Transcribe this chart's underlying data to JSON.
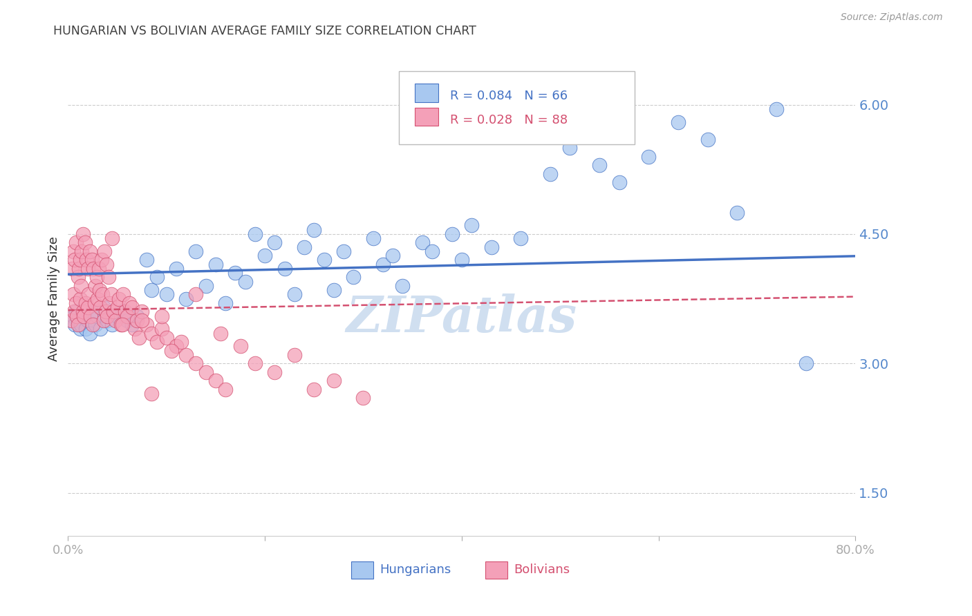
{
  "title": "HUNGARIAN VS BOLIVIAN AVERAGE FAMILY SIZE CORRELATION CHART",
  "source": "Source: ZipAtlas.com",
  "ylabel": "Average Family Size",
  "yticks": [
    1.5,
    3.0,
    4.5,
    6.0
  ],
  "xlim": [
    0.0,
    0.8
  ],
  "ylim": [
    1.0,
    6.5
  ],
  "color_hungarian": "#a8c8f0",
  "color_bolivian": "#f4a0b8",
  "color_line_hungarian": "#4472c4",
  "color_line_bolivian": "#d45070",
  "tick_color": "#5588cc",
  "watermark_color": "#d0dff0",
  "hun_R": 0.084,
  "hun_N": 66,
  "bol_R": 0.028,
  "bol_N": 88,
  "hungarian_x": [
    0.005,
    0.007,
    0.008,
    0.01,
    0.012,
    0.013,
    0.015,
    0.018,
    0.02,
    0.022,
    0.025,
    0.028,
    0.03,
    0.033,
    0.036,
    0.04,
    0.045,
    0.05,
    0.055,
    0.06,
    0.065,
    0.07,
    0.08,
    0.085,
    0.09,
    0.1,
    0.11,
    0.12,
    0.13,
    0.14,
    0.15,
    0.16,
    0.17,
    0.18,
    0.19,
    0.2,
    0.21,
    0.22,
    0.23,
    0.24,
    0.25,
    0.26,
    0.27,
    0.28,
    0.29,
    0.31,
    0.32,
    0.33,
    0.34,
    0.36,
    0.37,
    0.39,
    0.4,
    0.41,
    0.43,
    0.46,
    0.49,
    0.51,
    0.54,
    0.56,
    0.59,
    0.62,
    0.65,
    0.68,
    0.72,
    0.75
  ],
  "hungarian_y": [
    3.55,
    3.45,
    3.6,
    3.5,
    3.4,
    3.45,
    3.55,
    3.4,
    3.5,
    3.35,
    3.6,
    3.45,
    3.55,
    3.4,
    3.65,
    3.5,
    3.45,
    3.55,
    3.6,
    3.5,
    3.45,
    3.55,
    4.2,
    3.85,
    4.0,
    3.8,
    4.1,
    3.75,
    4.3,
    3.9,
    4.15,
    3.7,
    4.05,
    3.95,
    4.5,
    4.25,
    4.4,
    4.1,
    3.8,
    4.35,
    4.55,
    4.2,
    3.85,
    4.3,
    4.0,
    4.45,
    4.15,
    4.25,
    3.9,
    4.4,
    4.3,
    4.5,
    4.2,
    4.6,
    4.35,
    4.45,
    5.2,
    5.5,
    5.3,
    5.1,
    5.4,
    5.8,
    5.6,
    4.75,
    5.95,
    3.0
  ],
  "bolivian_x": [
    0.003,
    0.004,
    0.005,
    0.005,
    0.006,
    0.007,
    0.008,
    0.008,
    0.009,
    0.01,
    0.01,
    0.011,
    0.012,
    0.012,
    0.013,
    0.014,
    0.015,
    0.015,
    0.016,
    0.017,
    0.018,
    0.019,
    0.02,
    0.02,
    0.021,
    0.022,
    0.023,
    0.024,
    0.025,
    0.026,
    0.027,
    0.028,
    0.029,
    0.03,
    0.031,
    0.032,
    0.033,
    0.034,
    0.035,
    0.036,
    0.037,
    0.038,
    0.039,
    0.04,
    0.041,
    0.042,
    0.044,
    0.046,
    0.048,
    0.05,
    0.052,
    0.054,
    0.056,
    0.058,
    0.06,
    0.062,
    0.065,
    0.068,
    0.07,
    0.072,
    0.075,
    0.08,
    0.085,
    0.09,
    0.095,
    0.1,
    0.11,
    0.12,
    0.13,
    0.14,
    0.15,
    0.16,
    0.175,
    0.19,
    0.21,
    0.23,
    0.25,
    0.27,
    0.3,
    0.13,
    0.045,
    0.055,
    0.075,
    0.095,
    0.115,
    0.155,
    0.085,
    0.105
  ],
  "bolivian_y": [
    3.5,
    4.1,
    3.8,
    4.3,
    3.6,
    4.2,
    3.7,
    4.4,
    3.55,
    4.0,
    3.45,
    4.1,
    3.75,
    4.2,
    3.9,
    4.3,
    3.6,
    4.5,
    3.55,
    4.4,
    3.7,
    4.2,
    3.65,
    4.1,
    3.8,
    4.3,
    3.55,
    4.2,
    3.45,
    4.1,
    3.7,
    3.9,
    4.0,
    3.75,
    4.1,
    3.85,
    3.65,
    4.2,
    3.8,
    3.5,
    4.3,
    3.6,
    4.15,
    3.55,
    4.0,
    3.7,
    3.8,
    3.6,
    3.5,
    3.65,
    3.75,
    3.45,
    3.8,
    3.6,
    3.55,
    3.7,
    3.65,
    3.4,
    3.5,
    3.3,
    3.6,
    3.45,
    3.35,
    3.25,
    3.4,
    3.3,
    3.2,
    3.1,
    3.0,
    2.9,
    2.8,
    2.7,
    3.2,
    3.0,
    2.9,
    3.1,
    2.7,
    2.8,
    2.6,
    3.8,
    4.45,
    3.45,
    3.5,
    3.55,
    3.25,
    3.35,
    2.65,
    3.15
  ]
}
